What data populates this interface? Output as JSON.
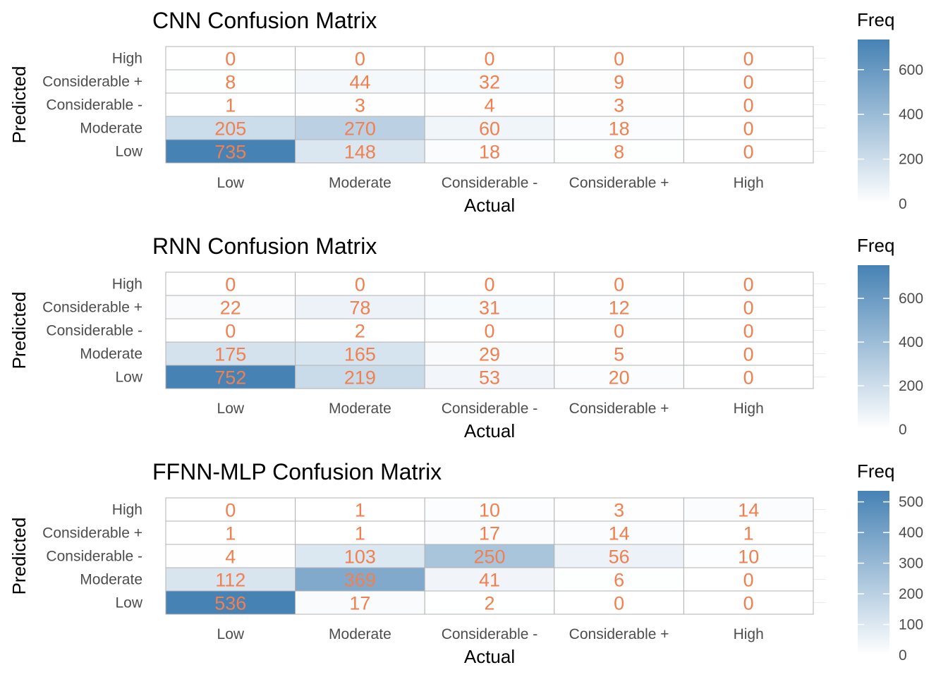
{
  "chart_data": [
    {
      "type": "heatmap",
      "title": "CNN Confusion Matrix",
      "xlabel": "Actual",
      "ylabel": "Predicted",
      "x_categories": [
        "Low",
        "Moderate",
        "Considerable -",
        "Considerable +",
        "High"
      ],
      "y_categories": [
        "High",
        "Considerable +",
        "Considerable -",
        "Moderate",
        "Low"
      ],
      "values": [
        [
          0,
          0,
          0,
          0,
          0
        ],
        [
          8,
          44,
          32,
          9,
          0
        ],
        [
          1,
          3,
          4,
          3,
          0
        ],
        [
          205,
          270,
          60,
          18,
          0
        ],
        [
          735,
          148,
          18,
          8,
          0
        ]
      ],
      "legend": {
        "title": "Freq",
        "placement": "right",
        "range": [
          0,
          735
        ],
        "ticks": [
          0,
          200,
          400,
          600
        ],
        "low_color": "#ffffff",
        "high_color": "#4682b4"
      },
      "label_color": "#f08050"
    },
    {
      "type": "heatmap",
      "title": "RNN Confusion Matrix",
      "xlabel": "Actual",
      "ylabel": "Predicted",
      "x_categories": [
        "Low",
        "Moderate",
        "Considerable -",
        "Considerable +",
        "High"
      ],
      "y_categories": [
        "High",
        "Considerable +",
        "Considerable -",
        "Moderate",
        "Low"
      ],
      "values": [
        [
          0,
          0,
          0,
          0,
          0
        ],
        [
          22,
          78,
          31,
          12,
          0
        ],
        [
          0,
          2,
          0,
          0,
          0
        ],
        [
          175,
          165,
          29,
          5,
          0
        ],
        [
          752,
          219,
          53,
          20,
          0
        ]
      ],
      "legend": {
        "title": "Freq",
        "placement": "right",
        "range": [
          0,
          752
        ],
        "ticks": [
          0,
          200,
          400,
          600
        ],
        "low_color": "#ffffff",
        "high_color": "#4682b4"
      },
      "label_color": "#f08050"
    },
    {
      "type": "heatmap",
      "title": "FFNN-MLP Confusion Matrix",
      "xlabel": "Actual",
      "ylabel": "Predicted",
      "x_categories": [
        "Low",
        "Moderate",
        "Considerable -",
        "Considerable +",
        "High"
      ],
      "y_categories": [
        "High",
        "Considerable +",
        "Considerable -",
        "Moderate",
        "Low"
      ],
      "values": [
        [
          0,
          1,
          10,
          3,
          14
        ],
        [
          1,
          1,
          17,
          14,
          1
        ],
        [
          4,
          103,
          250,
          56,
          10
        ],
        [
          112,
          369,
          41,
          6,
          0
        ],
        [
          536,
          17,
          2,
          0,
          0
        ]
      ],
      "legend": {
        "title": "Freq",
        "placement": "right",
        "range": [
          0,
          536
        ],
        "ticks": [
          0,
          100,
          200,
          300,
          400,
          500
        ],
        "low_color": "#ffffff",
        "high_color": "#4682b4"
      },
      "label_color": "#f08050"
    }
  ]
}
